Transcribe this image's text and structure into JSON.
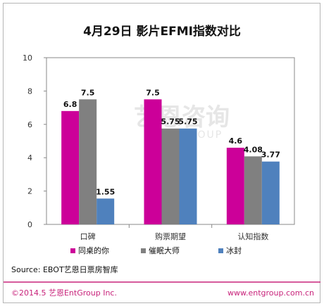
{
  "chart_data": {
    "type": "bar",
    "title": "4月29日 影片EFMI指数对比",
    "categories": [
      "口碑",
      "购票期望",
      "认知指数"
    ],
    "series": [
      {
        "name": "同桌的你",
        "values": [
          6.8,
          7.5,
          4.6
        ],
        "labels": [
          "6.8",
          "7.5",
          "4.6"
        ],
        "color": "#cc0099"
      },
      {
        "name": "催眠大师",
        "values": [
          7.5,
          5.75,
          4.08
        ],
        "labels": [
          "7.5",
          "5.75",
          "4.08"
        ],
        "color": "#808080"
      },
      {
        "name": "冰封",
        "values": [
          1.55,
          5.75,
          3.77
        ],
        "labels": [
          "1.55",
          "5.75",
          "3.77"
        ],
        "color": "#4f81bd"
      }
    ],
    "ylim": [
      0,
      10
    ],
    "yticks": [
      "0",
      "2",
      "4",
      "6",
      "8",
      "10"
    ],
    "grid": false,
    "legend": "bottom"
  },
  "source": "Source: EBOT艺恩日票房智库",
  "watermark": {
    "main": "艺恩咨询",
    "sub": "ENTGROUP"
  },
  "footer": {
    "left": "©2014.5 艺恩EntGroup Inc.",
    "right": "www.entgroup.com.cn"
  },
  "colors": {
    "border": "#b5b5b5",
    "axis": "#888888",
    "footer_line": "#c8237b"
  }
}
